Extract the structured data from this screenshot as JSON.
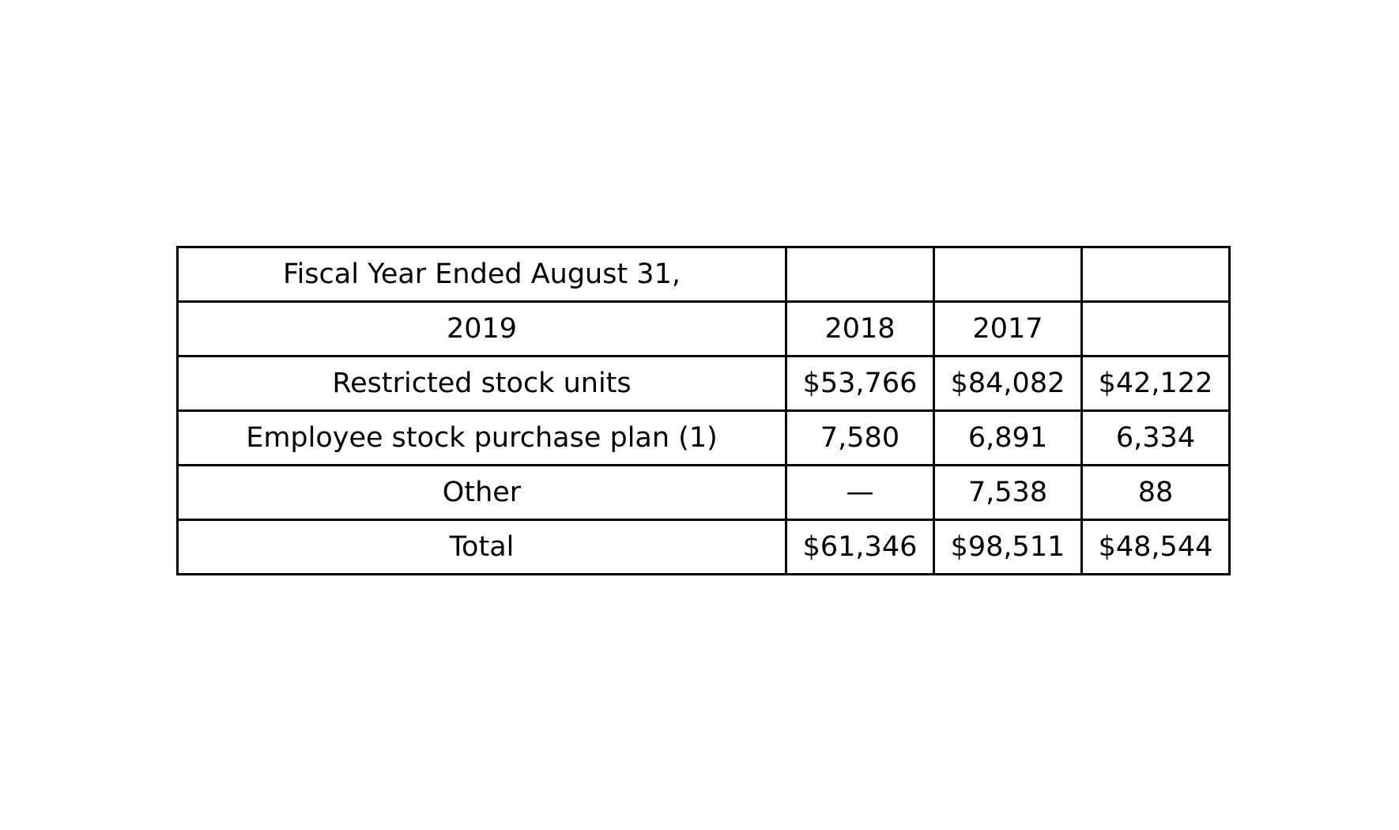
{
  "table": {
    "header_row_1": {
      "label": "Fiscal Year Ended August 31,",
      "cells": [
        "",
        "",
        ""
      ]
    },
    "header_row_2": {
      "label": "2019",
      "cells": [
        "2018",
        "2017",
        ""
      ]
    },
    "rows": [
      {
        "label": "Restricted stock units",
        "cells": [
          "$53,766",
          "$84,082",
          "$42,122"
        ]
      },
      {
        "label": "Employee stock purchase plan (1)",
        "cells": [
          "7,580",
          "6,891",
          "6,334"
        ]
      },
      {
        "label": "Other",
        "cells": [
          "—",
          "7,538",
          "88"
        ]
      },
      {
        "label": "Total",
        "cells": [
          "$61,346",
          "$98,511",
          "$48,544"
        ]
      }
    ]
  },
  "colors": {
    "text": "#000000",
    "border": "#000000",
    "background": "#ffffff"
  }
}
